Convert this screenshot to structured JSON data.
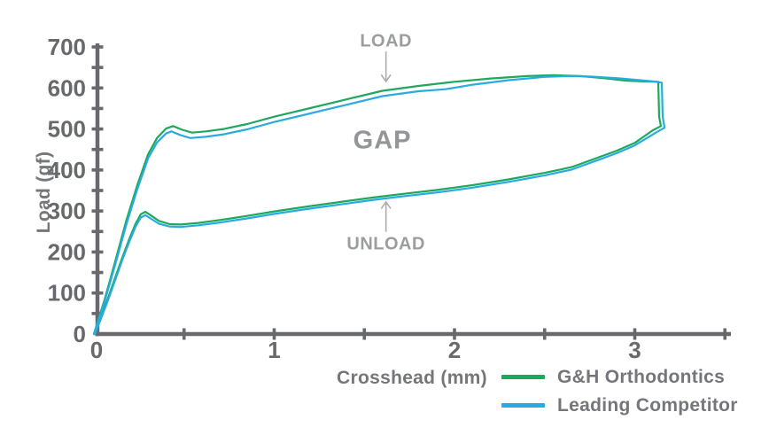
{
  "figure": {
    "background": "#ffffff",
    "y_axis_title": "Load (gf)",
    "x_axis_title": "Crosshead (mm)"
  },
  "colors": {
    "axis": "#68696c",
    "tick_label": "#68696c",
    "annotation_text": "#9b9da0",
    "arrow": "#abadaf",
    "green_series": "#1ea85d",
    "blue_series": "#29abe2"
  },
  "legend": {
    "items": [
      {
        "label": "G&H Orthodontics",
        "color": "#1ea85d"
      },
      {
        "label": "Leading Competitor",
        "color": "#29abe2"
      }
    ]
  },
  "chart_data": {
    "type": "line",
    "title": "",
    "xlabel": "Crosshead (mm)",
    "ylabel": "Load (gf)",
    "xlim": [
      0,
      3.5
    ],
    "ylim": [
      0,
      700
    ],
    "grid": false,
    "legend_position": "bottom-right",
    "x_tick_labels": [
      0,
      1,
      2,
      3
    ],
    "x_tick_marks": [
      0.5,
      1,
      1.5,
      2,
      2.5,
      3,
      3.5
    ],
    "y_tick_labels": [
      0,
      100,
      200,
      300,
      400,
      500,
      600,
      700
    ],
    "y_tick_marks": [
      50,
      100,
      150,
      200,
      250,
      300,
      350,
      400,
      450,
      500,
      550,
      600,
      650,
      700
    ],
    "annotations": [
      {
        "id": "load",
        "text": "LOAD",
        "x_mm": 1.62,
        "y_gf": 713,
        "arrow": {
          "from_gf": 689,
          "to_gf": 616,
          "direction": "down"
        }
      },
      {
        "id": "gap",
        "text": "GAP",
        "x_mm": 1.6,
        "y_gf": 470,
        "arrow": null
      },
      {
        "id": "unload",
        "text": "UNLOAD",
        "x_mm": 1.62,
        "y_gf": 218,
        "arrow": {
          "from_gf": 249,
          "to_gf": 322,
          "direction": "up"
        }
      }
    ],
    "series": [
      {
        "name": "G&H Orthodontics",
        "color": "#1ea85d",
        "points_load": [
          [
            0,
            0
          ],
          [
            0.06,
            85
          ],
          [
            0.12,
            180
          ],
          [
            0.18,
            277
          ],
          [
            0.24,
            362
          ],
          [
            0.3,
            438
          ],
          [
            0.35,
            478
          ],
          [
            0.4,
            501
          ],
          [
            0.44,
            507
          ],
          [
            0.49,
            498
          ],
          [
            0.545,
            491
          ],
          [
            0.62,
            494
          ],
          [
            0.72,
            500
          ],
          [
            0.85,
            512
          ],
          [
            1.0,
            530
          ],
          [
            1.2,
            551
          ],
          [
            1.4,
            572
          ],
          [
            1.6,
            593
          ],
          [
            1.8,
            605
          ],
          [
            2.0,
            615
          ],
          [
            2.2,
            623
          ],
          [
            2.4,
            629
          ],
          [
            2.55,
            631
          ],
          [
            2.7,
            629
          ],
          [
            2.85,
            623
          ],
          [
            2.95,
            618
          ],
          [
            3.05,
            616
          ],
          [
            3.13,
            615
          ]
        ],
        "points_unload": [
          [
            3.135,
            530
          ],
          [
            3.145,
            507
          ],
          [
            3.1,
            497
          ],
          [
            3.0,
            466
          ],
          [
            2.9,
            447
          ],
          [
            2.8,
            431
          ],
          [
            2.65,
            407
          ],
          [
            2.5,
            393
          ],
          [
            2.3,
            377
          ],
          [
            2.1,
            363
          ],
          [
            1.9,
            351
          ],
          [
            1.7,
            341
          ],
          [
            1.55,
            333
          ],
          [
            1.4,
            324
          ],
          [
            1.2,
            312
          ],
          [
            1.0,
            299
          ],
          [
            0.85,
            288
          ],
          [
            0.7,
            278
          ],
          [
            0.58,
            271
          ],
          [
            0.48,
            267
          ],
          [
            0.42,
            268
          ],
          [
            0.36,
            276
          ],
          [
            0.31,
            291
          ],
          [
            0.285,
            298
          ],
          [
            0.26,
            292
          ],
          [
            0.23,
            268
          ],
          [
            0.2,
            236
          ],
          [
            0.16,
            190
          ],
          [
            0.12,
            140
          ],
          [
            0.08,
            90
          ],
          [
            0.04,
            42
          ],
          [
            0.005,
            0
          ]
        ]
      },
      {
        "name": "Leading Competitor",
        "color": "#29abe2",
        "points_load": [
          [
            0,
            0
          ],
          [
            0.06,
            80
          ],
          [
            0.12,
            172
          ],
          [
            0.18,
            267
          ],
          [
            0.24,
            352
          ],
          [
            0.3,
            428
          ],
          [
            0.35,
            467
          ],
          [
            0.4,
            489
          ],
          [
            0.43,
            494
          ],
          [
            0.48,
            485
          ],
          [
            0.535,
            478
          ],
          [
            0.62,
            481
          ],
          [
            0.72,
            487
          ],
          [
            0.85,
            499
          ],
          [
            1.0,
            517
          ],
          [
            1.2,
            538
          ],
          [
            1.4,
            559
          ],
          [
            1.6,
            580
          ],
          [
            1.8,
            592
          ],
          [
            1.95,
            597
          ],
          [
            2.1,
            608
          ],
          [
            2.3,
            619
          ],
          [
            2.5,
            627
          ],
          [
            2.62,
            629
          ],
          [
            2.75,
            628
          ],
          [
            2.9,
            624
          ],
          [
            3.0,
            620
          ],
          [
            3.1,
            616
          ],
          [
            3.15,
            613
          ]
        ],
        "points_unload": [
          [
            3.155,
            530
          ],
          [
            3.165,
            503
          ],
          [
            3.12,
            492
          ],
          [
            3.0,
            460
          ],
          [
            2.9,
            441
          ],
          [
            2.8,
            425
          ],
          [
            2.65,
            401
          ],
          [
            2.5,
            387
          ],
          [
            2.3,
            371
          ],
          [
            2.1,
            357
          ],
          [
            1.9,
            345
          ],
          [
            1.7,
            335
          ],
          [
            1.55,
            327
          ],
          [
            1.4,
            318
          ],
          [
            1.2,
            306
          ],
          [
            1.0,
            293
          ],
          [
            0.85,
            282
          ],
          [
            0.7,
            272
          ],
          [
            0.58,
            265
          ],
          [
            0.48,
            261
          ],
          [
            0.42,
            262
          ],
          [
            0.36,
            269
          ],
          [
            0.31,
            283
          ],
          [
            0.285,
            290
          ],
          [
            0.26,
            284
          ],
          [
            0.23,
            261
          ],
          [
            0.2,
            229
          ],
          [
            0.16,
            184
          ],
          [
            0.12,
            134
          ],
          [
            0.08,
            85
          ],
          [
            0.04,
            38
          ],
          [
            0.005,
            0
          ]
        ]
      }
    ]
  }
}
